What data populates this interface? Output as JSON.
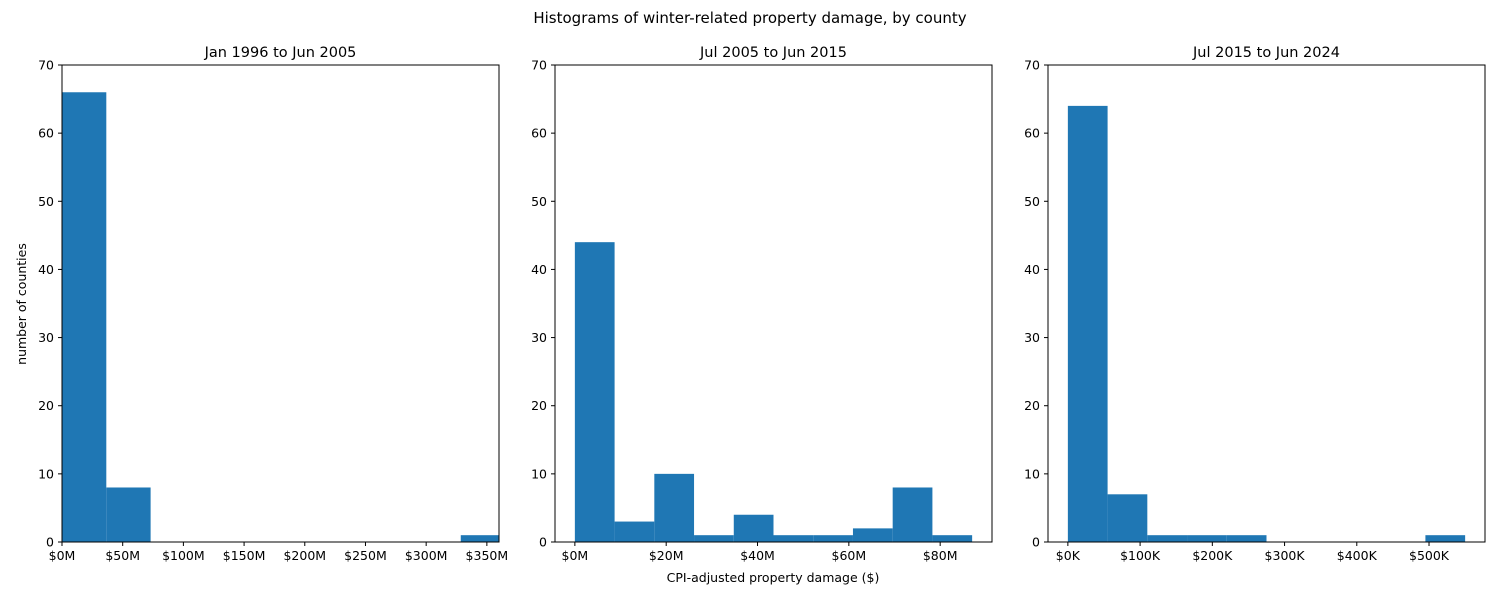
{
  "figure": {
    "title": "Histograms of winter-related property damage, by county",
    "xlabel": "CPI-adjusted property damage ($)",
    "ylabel": "number of counties"
  },
  "colors": {
    "bar": "#1f77b4",
    "axis": "#000000",
    "background": "#ffffff"
  },
  "chart_data": [
    {
      "type": "bar",
      "title": "Jan 1996 to Jun 2005",
      "xlabel": "",
      "ylabel": "number of counties",
      "grid": false,
      "unit": "M",
      "bins": [
        {
          "x0": 0,
          "x1": 36.5,
          "count": 66
        },
        {
          "x0": 36.5,
          "x1": 73,
          "count": 8
        },
        {
          "x0": 73,
          "x1": 109.5,
          "count": 0
        },
        {
          "x0": 109.5,
          "x1": 146,
          "count": 0
        },
        {
          "x0": 146,
          "x1": 182.5,
          "count": 0
        },
        {
          "x0": 182.5,
          "x1": 219,
          "count": 0
        },
        {
          "x0": 219,
          "x1": 255.5,
          "count": 0
        },
        {
          "x0": 255.5,
          "x1": 292,
          "count": 0
        },
        {
          "x0": 292,
          "x1": 328.5,
          "count": 0
        },
        {
          "x0": 328.5,
          "x1": 365,
          "count": 1
        }
      ],
      "xlim": [
        0,
        360
      ],
      "ylim": [
        0,
        70
      ],
      "xticks": [
        0,
        50,
        100,
        150,
        200,
        250,
        300,
        350
      ],
      "xtick_labels": [
        "$0M",
        "$50M",
        "$100M",
        "$150M",
        "$200M",
        "$250M",
        "$300M",
        "$350M"
      ],
      "yticks": [
        0,
        10,
        20,
        30,
        40,
        50,
        60,
        70
      ],
      "ytick_labels": [
        "0",
        "10",
        "20",
        "30",
        "40",
        "50",
        "60",
        "70"
      ]
    },
    {
      "type": "bar",
      "title": "Jul 2005 to Jun 2015",
      "xlabel": "CPI-adjusted property damage ($)",
      "ylabel": "",
      "grid": false,
      "unit": "M",
      "bins": [
        {
          "x0": 0,
          "x1": 8.7,
          "count": 44
        },
        {
          "x0": 8.7,
          "x1": 17.4,
          "count": 3
        },
        {
          "x0": 17.4,
          "x1": 26.1,
          "count": 10
        },
        {
          "x0": 26.1,
          "x1": 34.8,
          "count": 1
        },
        {
          "x0": 34.8,
          "x1": 43.5,
          "count": 4
        },
        {
          "x0": 43.5,
          "x1": 52.2,
          "count": 1
        },
        {
          "x0": 52.2,
          "x1": 60.9,
          "count": 1
        },
        {
          "x0": 60.9,
          "x1": 69.6,
          "count": 2
        },
        {
          "x0": 69.6,
          "x1": 78.3,
          "count": 8
        },
        {
          "x0": 78.3,
          "x1": 87.0,
          "count": 1
        }
      ],
      "xlim": [
        -4.35,
        91.35
      ],
      "ylim": [
        0,
        70
      ],
      "xticks": [
        0,
        20,
        40,
        60,
        80
      ],
      "xtick_labels": [
        "$0M",
        "$20M",
        "$40M",
        "$60M",
        "$80M"
      ],
      "yticks": [
        0,
        10,
        20,
        30,
        40,
        50,
        60,
        70
      ],
      "ytick_labels": [
        "0",
        "10",
        "20",
        "30",
        "40",
        "50",
        "60",
        "70"
      ]
    },
    {
      "type": "bar",
      "title": "Jul 2015 to Jun 2024",
      "xlabel": "",
      "ylabel": "",
      "grid": false,
      "unit": "K",
      "bins": [
        {
          "x0": 0,
          "x1": 55,
          "count": 64
        },
        {
          "x0": 55,
          "x1": 110,
          "count": 7
        },
        {
          "x0": 110,
          "x1": 165,
          "count": 1
        },
        {
          "x0": 165,
          "x1": 220,
          "count": 1
        },
        {
          "x0": 220,
          "x1": 275,
          "count": 1
        },
        {
          "x0": 275,
          "x1": 330,
          "count": 0
        },
        {
          "x0": 330,
          "x1": 385,
          "count": 0
        },
        {
          "x0": 385,
          "x1": 440,
          "count": 0
        },
        {
          "x0": 440,
          "x1": 495,
          "count": 0
        },
        {
          "x0": 495,
          "x1": 550,
          "count": 1
        }
      ],
      "xlim": [
        -27.5,
        577.5
      ],
      "ylim": [
        0,
        70
      ],
      "xticks": [
        0,
        100,
        200,
        300,
        400,
        500
      ],
      "xtick_labels": [
        "$0K",
        "$100K",
        "$200K",
        "$300K",
        "$400K",
        "$500K"
      ],
      "yticks": [
        0,
        10,
        20,
        30,
        40,
        50,
        60,
        70
      ],
      "ytick_labels": [
        "0",
        "10",
        "20",
        "30",
        "40",
        "50",
        "60",
        "70"
      ]
    }
  ]
}
